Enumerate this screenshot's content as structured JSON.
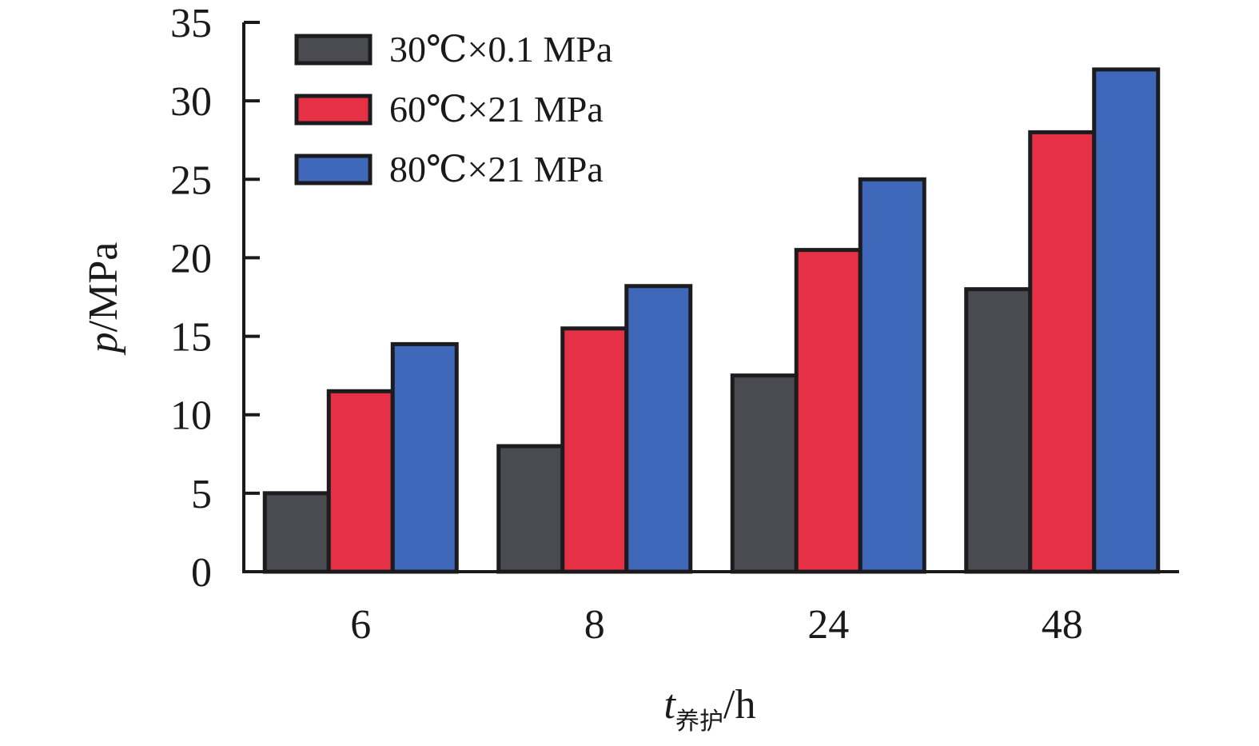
{
  "chart_data": {
    "type": "bar",
    "categories": [
      "6",
      "8",
      "24",
      "48"
    ],
    "series": [
      {
        "name": "30℃×0.1 MPa",
        "color": "#4a4b50",
        "values": [
          5,
          8,
          12.5,
          18
        ]
      },
      {
        "name": "60℃×21 MPa",
        "color": "#e63045",
        "values": [
          11.5,
          15.5,
          20.5,
          28
        ]
      },
      {
        "name": "80℃×21 MPa",
        "color": "#3f68bb",
        "values": [
          14.5,
          18.2,
          25,
          32
        ]
      }
    ],
    "xlabel": {
      "main": "t",
      "sub": "养护",
      "unit": "/h"
    },
    "ylabel": {
      "main": "p",
      "unit": "/MPa"
    },
    "ylim": [
      0,
      35
    ],
    "yticks": [
      0,
      5,
      10,
      15,
      20,
      25,
      30,
      35
    ],
    "legend_position": "top-left",
    "grid": false
  }
}
